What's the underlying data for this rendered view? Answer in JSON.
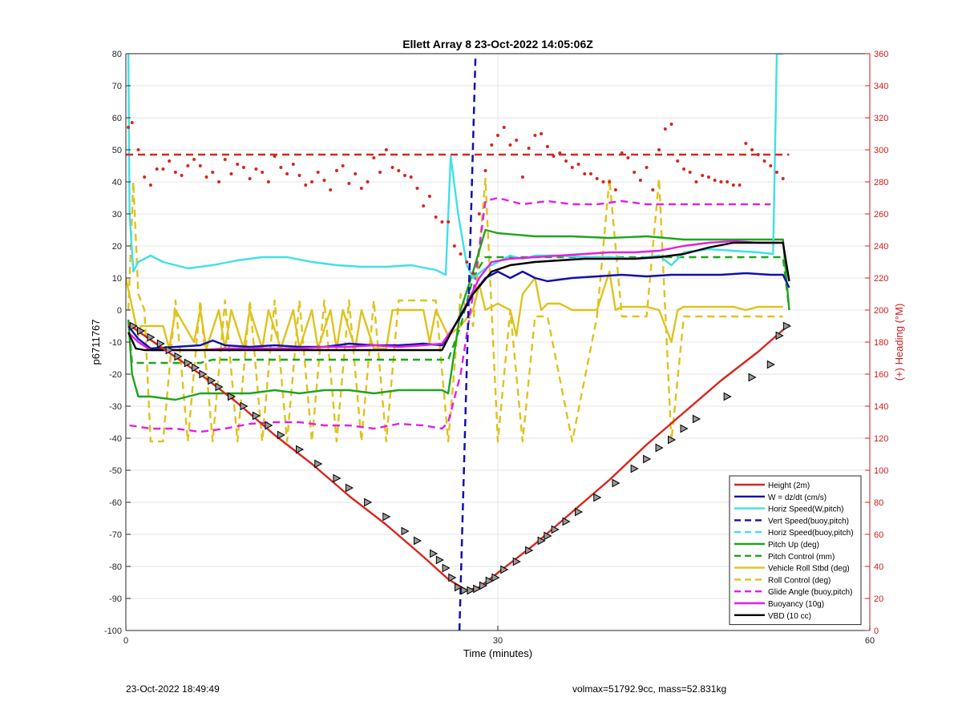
{
  "chart_data": {
    "type": "line",
    "title": "Ellett Array 8 23-Oct-2022 14:05:06Z",
    "xlabel": "Time (minutes)",
    "ylabel": "p6711767",
    "y2label": "(+) Heading (°M)",
    "xlim": [
      0,
      60
    ],
    "ylim": [
      -100,
      80
    ],
    "y2lim": [
      0,
      360
    ],
    "xticks": [
      0,
      30,
      60
    ],
    "yticks": [
      -100,
      -90,
      -80,
      -70,
      -60,
      -50,
      -40,
      -30,
      -20,
      -10,
      0,
      10,
      20,
      30,
      40,
      50,
      60,
      70,
      80
    ],
    "y2ticks": [
      0,
      20,
      40,
      60,
      80,
      100,
      120,
      140,
      160,
      180,
      200,
      220,
      240,
      260,
      280,
      300,
      320,
      340,
      360
    ],
    "grid": true,
    "legend_position": "bottom-right",
    "colors": {
      "height": "#d7261e",
      "w": "#1010b0",
      "cyan": "#3fe0e8",
      "green": "#1ea51e",
      "yellow": "#e0c21c",
      "magenta": "#e21ee2",
      "black": "#000000",
      "right_axis": "#cc1c1c"
    },
    "series": [
      {
        "name": "Height (2m)",
        "style": "solid",
        "color_key": "height",
        "x": [
          0.2,
          3,
          6,
          9,
          12,
          15,
          18,
          21,
          24,
          26,
          27.5,
          28.5,
          30,
          33,
          36,
          39,
          42,
          45,
          48,
          51,
          53.5
        ],
        "y": [
          -4.5,
          -12,
          -20,
          -29,
          -39,
          -48,
          -58,
          -67,
          -77,
          -84,
          -87.5,
          -86.5,
          -82,
          -73,
          -63,
          -53,
          -42,
          -32,
          -22,
          -13,
          -4.5
        ]
      },
      {
        "name": "W = dz/dt (cm/s)",
        "style": "solid",
        "color_key": "w",
        "x": [
          0.2,
          1,
          2,
          4,
          6,
          7,
          8,
          10,
          12,
          14,
          16,
          18,
          20,
          22,
          24,
          25.5,
          26,
          27,
          28,
          29,
          30,
          31,
          32,
          33,
          34,
          36,
          38,
          40,
          42,
          44,
          46,
          48,
          50,
          52,
          53,
          53.5
        ],
        "y": [
          -5,
          -9,
          -12,
          -11.5,
          -11,
          -9.5,
          -11,
          -11.5,
          -11,
          -11.5,
          -11.5,
          -10.5,
          -11,
          -11,
          -10.5,
          -11,
          -8,
          -2,
          5,
          10,
          12,
          10,
          12,
          10,
          9,
          10,
          10.5,
          11,
          10.5,
          11,
          11,
          11,
          11.5,
          11,
          11,
          7
        ]
      },
      {
        "name": "Horiz Speed(W,pitch)",
        "style": "solid",
        "color_key": "cyan",
        "x": [
          0.2,
          0.3,
          0.6,
          1,
          2,
          3,
          5,
          7,
          9,
          11,
          13,
          15,
          17,
          19,
          21,
          23,
          25,
          25.8,
          26.2,
          26.8,
          27.5,
          28,
          29,
          30,
          31,
          32,
          33,
          35,
          37,
          39,
          41,
          43,
          44,
          45,
          47,
          49,
          51,
          52.2,
          52.5,
          53
        ],
        "y": [
          80,
          30,
          12,
          15,
          17,
          15,
          13,
          14,
          15.5,
          16.5,
          16.5,
          15,
          14,
          13.5,
          13.5,
          14,
          12.5,
          11,
          48,
          30,
          14,
          10,
          13,
          15,
          17,
          16,
          17,
          17,
          16.5,
          16.5,
          16,
          17,
          14,
          18,
          19,
          18.5,
          18,
          17.5,
          80,
          80
        ]
      },
      {
        "name": "Vert Speed(buoy,pitch)",
        "style": "dashed",
        "color_key": "w",
        "x": [
          26.9,
          28.2
        ],
        "y": [
          -100,
          80
        ]
      },
      {
        "name": "Horiz Speed(buoy,pitch)",
        "style": "dashed",
        "color_key": "cyan",
        "x": [],
        "y": []
      },
      {
        "name": "Pitch Up (deg)",
        "style": "solid",
        "color_key": "green",
        "x": [
          0.2,
          0.5,
          1,
          2,
          4,
          6,
          8,
          10,
          12,
          14,
          16,
          18,
          20,
          22,
          24,
          25.5,
          26,
          27,
          28,
          29,
          30,
          33,
          36,
          39,
          42,
          45,
          48,
          51,
          53,
          53.5
        ],
        "y": [
          -3,
          -20,
          -27,
          -27,
          -28,
          -26,
          -26,
          -26,
          -25,
          -26,
          -25,
          -25,
          -26,
          -25,
          -25,
          -25,
          -26,
          0,
          12,
          25,
          24,
          23,
          23,
          22.5,
          23,
          22,
          22,
          22,
          22,
          0
        ]
      },
      {
        "name": "Pitch Control (mm)",
        "style": "dashed",
        "color_key": "green",
        "x": [
          0.2,
          0.5,
          1,
          6,
          7,
          26,
          27,
          28,
          29,
          53,
          53.5
        ],
        "y": [
          -3,
          -16.5,
          -16.5,
          -16.5,
          -15.5,
          -15.5,
          -5,
          10,
          16.5,
          16.5,
          0
        ]
      },
      {
        "name": "Vehicle Roll Stbd (deg)",
        "style": "solid",
        "color_key": "yellow",
        "x": [
          0,
          1,
          1.2,
          3,
          3.5,
          4,
          5.5,
          6,
          6.5,
          7.5,
          8,
          8.5,
          9.5,
          10,
          11,
          11.5,
          12.5,
          13.5,
          14,
          15,
          15.5,
          16.5,
          17,
          17.5,
          18.5,
          19,
          20,
          21,
          21.5,
          22,
          24,
          24.5,
          25,
          26,
          27,
          28,
          28.5,
          29,
          30,
          31,
          31.5,
          32,
          33,
          33.5,
          34,
          35,
          36,
          38,
          39,
          39.5,
          40,
          42,
          43,
          44,
          44.5,
          45,
          47,
          49,
          50,
          51,
          53
        ],
        "y": [
          10,
          -8,
          -5,
          -5,
          -12,
          0,
          -10,
          0,
          -12,
          0,
          -12,
          0,
          -12,
          0,
          -12,
          0,
          -12,
          0,
          -12,
          0,
          -12,
          0,
          -12,
          0,
          -12,
          0,
          -12,
          -12,
          0,
          0,
          0,
          -10,
          0,
          -8,
          -5,
          0,
          8,
          0,
          2,
          0,
          -8,
          5,
          10,
          0,
          2,
          2,
          0,
          0,
          12,
          0,
          1,
          1,
          0,
          -10,
          0,
          1,
          1,
          1,
          0,
          1,
          1
        ]
      },
      {
        "name": "Roll Control (deg)",
        "style": "dashed",
        "color_key": "yellow",
        "x": [
          0.2,
          0.6,
          1,
          1.5,
          2,
          3,
          4,
          5,
          6,
          7,
          8,
          9,
          10,
          11,
          12,
          13,
          14,
          15,
          16,
          17,
          18,
          19,
          20,
          21,
          22,
          23,
          24,
          25,
          26,
          27,
          28,
          29,
          30,
          31,
          32,
          33,
          34,
          36,
          38,
          39,
          40,
          42,
          43,
          44,
          45,
          47,
          49,
          50,
          51,
          53
        ],
        "y": [
          0,
          40,
          5,
          0,
          -41,
          -41,
          3,
          -41,
          3,
          -41,
          3,
          -41,
          3,
          -41,
          3,
          -41,
          3,
          -41,
          3,
          -41,
          3,
          -41,
          3,
          -41,
          3,
          3,
          3,
          3,
          -41,
          5,
          -5,
          41,
          -41,
          0,
          -41,
          -2,
          -2,
          -41,
          -2,
          41,
          -2,
          -2,
          41,
          -41,
          -2,
          -2,
          -2,
          -2,
          -2,
          -2
        ]
      },
      {
        "name": "Glide Angle (buoy,pitch)",
        "style": "dashed",
        "color_key": "magenta",
        "x": [
          0.3,
          2,
          4,
          6,
          8,
          10,
          12,
          14,
          16,
          18,
          20,
          22,
          24,
          25.5,
          26,
          27,
          28,
          29,
          30,
          32,
          34,
          36,
          38,
          40,
          42,
          44,
          46,
          48,
          50,
          52
        ],
        "y": [
          -36,
          -37,
          -37,
          -38,
          -37,
          -35.5,
          -35,
          -35,
          -36,
          -36,
          -37,
          -35.5,
          -36,
          -37,
          -35,
          -20,
          5,
          34,
          35,
          33,
          34,
          33,
          33,
          34,
          33,
          33,
          33,
          33,
          33,
          33
        ]
      },
      {
        "name": "Buoyancy (10g)",
        "style": "solid",
        "color_key": "magenta",
        "x": [
          0.2,
          1,
          2,
          4,
          6,
          8,
          10,
          12,
          14,
          16,
          18,
          20,
          22,
          24,
          25.5,
          26.5,
          27.5,
          28.5,
          29.5,
          31,
          33,
          35,
          37,
          39,
          41,
          43,
          45,
          47,
          49,
          51,
          53
        ],
        "y": [
          -7,
          -10,
          -12.5,
          -12.5,
          -12.5,
          -12,
          -12,
          -12,
          -12,
          -11.5,
          -11.5,
          -11,
          -11.5,
          -11,
          -10.5,
          -5,
          2,
          10,
          15,
          16,
          16.5,
          17,
          17.5,
          18,
          18,
          18.5,
          20,
          21,
          21.5,
          21,
          21
        ]
      },
      {
        "name": "VBD (10 cc)",
        "style": "solid",
        "color_key": "black",
        "x": [
          0.2,
          0.8,
          1.5,
          3,
          6,
          10,
          14,
          18,
          22,
          25.5,
          26.5,
          28,
          29.5,
          31,
          33,
          35,
          37,
          39,
          41,
          43,
          45,
          47,
          49,
          51,
          53,
          53.5
        ],
        "y": [
          -7,
          -12,
          -12.5,
          -12.5,
          -12.5,
          -12.5,
          -12.5,
          -12.5,
          -12.5,
          -12.5,
          -5,
          5,
          12,
          14,
          15,
          15.5,
          16,
          16,
          16,
          16.5,
          17.5,
          19.5,
          21,
          21,
          21,
          9
        ]
      },
      {
        "name": "Heading",
        "axis": "right",
        "style": "dashed",
        "color_key": "height",
        "x": [
          0,
          53.5
        ],
        "y": [
          297,
          297
        ]
      },
      {
        "name": "Heading points",
        "axis": "right",
        "style": "dotted",
        "color_key": "height",
        "x": [
          0.2,
          0.5,
          1,
          1.5,
          2,
          2.5,
          3,
          3.5,
          4,
          4.5,
          5,
          5.5,
          6,
          6.5,
          7,
          7.5,
          8,
          8.5,
          9,
          9.5,
          10,
          10.5,
          11,
          11.5,
          12,
          12.5,
          13,
          13.5,
          14,
          14.5,
          15,
          15.5,
          16,
          16.5,
          17,
          17.5,
          18,
          18.5,
          19,
          19.5,
          20,
          20.5,
          21,
          21.5,
          22,
          22.5,
          23,
          23.5,
          24,
          24.5,
          25,
          25.5,
          26,
          26.5,
          27,
          27.5,
          28,
          28.5,
          29,
          29.5,
          30,
          30.5,
          31,
          31.5,
          32,
          32.5,
          33,
          33.5,
          34,
          34.5,
          35,
          35.5,
          36,
          36.5,
          37,
          37.5,
          38,
          38.5,
          39,
          39.5,
          40,
          40.5,
          41,
          41.5,
          42,
          42.5,
          43,
          43.5,
          44,
          44.5,
          45,
          45.5,
          46,
          46.5,
          47,
          47.5,
          48,
          48.5,
          49,
          49.5,
          50,
          50.5,
          51,
          51.5,
          52,
          52.5,
          53
        ],
        "y": [
          314,
          317,
          300,
          283,
          278,
          288,
          288,
          293,
          286,
          284,
          290,
          294,
          290,
          283,
          286,
          280,
          294,
          285,
          291,
          289,
          282,
          288,
          286,
          280,
          296,
          289,
          285,
          291,
          284,
          278,
          280,
          286,
          281,
          275,
          287,
          290,
          279,
          285,
          276,
          280,
          295,
          286,
          300,
          289,
          287,
          284,
          283,
          276,
          265,
          271,
          258,
          255,
          255,
          240,
          235,
          230,
          223,
          260,
          287,
          303,
          309,
          314,
          303,
          306,
          283,
          301,
          309,
          310,
          302,
          296,
          298,
          293,
          289,
          291,
          285,
          285,
          282,
          280,
          280,
          275,
          298,
          295,
          286,
          281,
          289,
          275,
          300,
          313,
          316,
          293,
          288,
          286,
          280,
          284,
          283,
          281,
          280,
          280,
          278,
          278,
          304,
          300,
          297,
          293,
          290,
          286,
          282
        ]
      }
    ],
    "dive_markers": {
      "x": [
        0.6,
        1.2,
        2.0,
        2.8,
        3.5,
        4.2,
        5.0,
        5.6,
        6.2,
        6.9,
        7.5,
        8.5,
        9.5,
        10.5,
        11.5,
        12.5,
        14.0,
        15.5,
        17.0,
        18.0,
        19.5,
        21.0,
        22.5,
        23.5,
        24.8,
        25.3,
        25.8,
        26.3,
        26.8,
        27.3,
        27.8,
        28.3,
        28.8,
        29.3,
        29.8,
        30.5,
        31.5,
        32.5,
        33.5,
        34.0,
        34.6,
        35.5,
        36.5,
        38.0,
        39.5,
        41.0,
        42.0,
        43.0,
        44.0,
        45.0,
        46.0,
        48.5,
        50.5,
        52.0,
        52.7,
        53.3
      ],
      "y": [
        -5,
        -6.5,
        -8.5,
        -10.5,
        -12.5,
        -14.5,
        -16.5,
        -18,
        -20,
        -22,
        -24,
        -27,
        -30,
        -33,
        -36,
        -39,
        -43.5,
        -48,
        -52.5,
        -55.5,
        -60,
        -64.5,
        -69,
        -72,
        -76,
        -78,
        -80.5,
        -83.5,
        -86.5,
        -87.5,
        -87.5,
        -87,
        -86,
        -84.5,
        -83.5,
        -81,
        -78.5,
        -75,
        -72,
        -70.5,
        -68.5,
        -66,
        -63,
        -58.5,
        -54,
        -49.5,
        -46.5,
        -43,
        -40.5,
        -37,
        -34,
        -27,
        -21,
        -17,
        -8,
        -5
      ]
    }
  },
  "footer": {
    "left": "23-Oct-2022 18:49:49",
    "right": "volmax=51792.9cc, mass=52.831kg"
  }
}
